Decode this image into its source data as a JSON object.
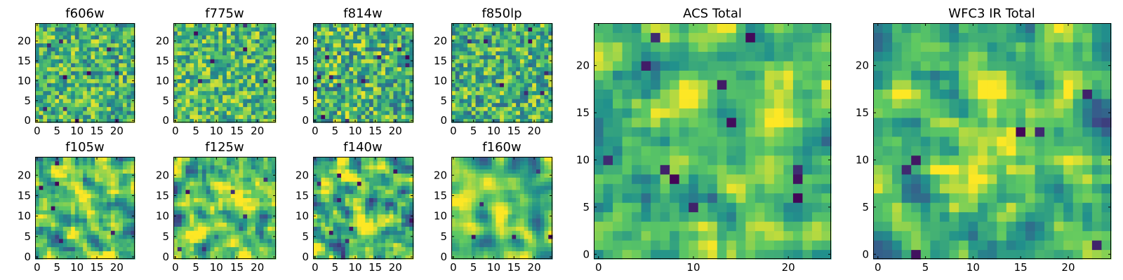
{
  "figure": {
    "colormap": "viridis",
    "colormap_stops": [
      "#440154",
      "#3b528b",
      "#21918c",
      "#5ec962",
      "#fde725"
    ]
  },
  "chart_data": [
    {
      "id": "f606w",
      "type": "heatmap",
      "title": "f606w",
      "grid_size": 25,
      "xlim": [
        0,
        24
      ],
      "ylim": [
        0,
        24
      ],
      "xticks": [
        0,
        5,
        10,
        15,
        20
      ],
      "yticks": [
        0,
        5,
        10,
        15,
        20
      ],
      "xtick_labels": [
        "0",
        "5",
        "10",
        "15",
        "20"
      ],
      "ytick_labels": [
        "0",
        "5",
        "10",
        "15",
        "20"
      ],
      "value_range": [
        0,
        1
      ],
      "seed": 606,
      "smoothness": 0,
      "mean": 0.66,
      "spread": 0.17,
      "low_outliers": 10,
      "blob": null
    },
    {
      "id": "f775w",
      "type": "heatmap",
      "title": "f775w",
      "grid_size": 25,
      "xlim": [
        0,
        24
      ],
      "ylim": [
        0,
        24
      ],
      "xticks": [
        0,
        5,
        10,
        15,
        20
      ],
      "yticks": [
        0,
        5,
        10,
        15,
        20
      ],
      "xtick_labels": [
        "0",
        "5",
        "10",
        "15",
        "20"
      ],
      "ytick_labels": [
        "0",
        "5",
        "10",
        "15",
        "20"
      ],
      "value_range": [
        0,
        1
      ],
      "seed": 775,
      "smoothness": 0,
      "mean": 0.68,
      "spread": 0.17,
      "low_outliers": 6,
      "blob": null
    },
    {
      "id": "f814w",
      "type": "heatmap",
      "title": "f814w",
      "grid_size": 25,
      "xlim": [
        0,
        24
      ],
      "ylim": [
        0,
        24
      ],
      "xticks": [
        0,
        5,
        10,
        15,
        20
      ],
      "yticks": [
        0,
        5,
        10,
        15,
        20
      ],
      "xtick_labels": [
        "0",
        "5",
        "10",
        "15",
        "20"
      ],
      "ytick_labels": [
        "0",
        "5",
        "10",
        "15",
        "20"
      ],
      "value_range": [
        0,
        1
      ],
      "seed": 814,
      "smoothness": 0,
      "mean": 0.64,
      "spread": 0.19,
      "low_outliers": 12,
      "blob": null
    },
    {
      "id": "f850lp",
      "type": "heatmap",
      "title": "f850lp",
      "grid_size": 25,
      "xlim": [
        0,
        24
      ],
      "ylim": [
        0,
        24
      ],
      "xticks": [
        0,
        5,
        10,
        15,
        20
      ],
      "yticks": [
        0,
        5,
        10,
        15,
        20
      ],
      "xtick_labels": [
        "0",
        "5",
        "10",
        "15",
        "20"
      ],
      "ytick_labels": [
        "0",
        "5",
        "10",
        "15",
        "20"
      ],
      "value_range": [
        0,
        1
      ],
      "seed": 850,
      "smoothness": 0,
      "mean": 0.64,
      "spread": 0.18,
      "low_outliers": 8,
      "blob": null
    },
    {
      "id": "f105w",
      "type": "heatmap",
      "title": "f105w",
      "grid_size": 25,
      "xlim": [
        0,
        24
      ],
      "ylim": [
        0,
        24
      ],
      "xticks": [
        0,
        5,
        10,
        15,
        20
      ],
      "yticks": [
        0,
        5,
        10,
        15,
        20
      ],
      "xtick_labels": [
        "0",
        "5",
        "10",
        "15",
        "20"
      ],
      "ytick_labels": [
        "0",
        "5",
        "10",
        "15",
        "20"
      ],
      "value_range": [
        0,
        1
      ],
      "seed": 105,
      "smoothness": 1,
      "mean": 0.7,
      "spread": 0.18,
      "low_outliers": 6,
      "blob": null
    },
    {
      "id": "f125w",
      "type": "heatmap",
      "title": "f125w",
      "grid_size": 25,
      "xlim": [
        0,
        24
      ],
      "ylim": [
        0,
        24
      ],
      "xticks": [
        0,
        5,
        10,
        15,
        20
      ],
      "yticks": [
        0,
        5,
        10,
        15,
        20
      ],
      "xtick_labels": [
        "0",
        "5",
        "10",
        "15",
        "20"
      ],
      "ytick_labels": [
        "0",
        "5",
        "10",
        "15",
        "20"
      ],
      "value_range": [
        0,
        1
      ],
      "seed": 125,
      "smoothness": 1,
      "mean": 0.7,
      "spread": 0.18,
      "low_outliers": 5,
      "blob": {
        "x": 10,
        "y": 12,
        "r": 4,
        "amp": 0.15
      }
    },
    {
      "id": "f140w",
      "type": "heatmap",
      "title": "f140w",
      "grid_size": 25,
      "xlim": [
        0,
        24
      ],
      "ylim": [
        0,
        24
      ],
      "xticks": [
        0,
        5,
        10,
        15,
        20
      ],
      "yticks": [
        0,
        5,
        10,
        15,
        20
      ],
      "xtick_labels": [
        "0",
        "5",
        "10",
        "15",
        "20"
      ],
      "ytick_labels": [
        "0",
        "5",
        "10",
        "15",
        "20"
      ],
      "value_range": [
        0,
        1
      ],
      "seed": 140,
      "smoothness": 1,
      "mean": 0.64,
      "spread": 0.2,
      "low_outliers": 8,
      "blob": {
        "x": 12,
        "y": 11,
        "r": 4,
        "amp": 0.2
      }
    },
    {
      "id": "f160w",
      "type": "heatmap",
      "title": "f160w",
      "grid_size": 25,
      "xlim": [
        0,
        24
      ],
      "ylim": [
        0,
        24
      ],
      "xticks": [
        0,
        5,
        10,
        15,
        20
      ],
      "yticks": [
        0,
        5,
        10,
        15,
        20
      ],
      "xtick_labels": [
        "0",
        "5",
        "10",
        "15",
        "20"
      ],
      "ytick_labels": [
        "0",
        "5",
        "10",
        "15",
        "20"
      ],
      "value_range": [
        0,
        1
      ],
      "seed": 160,
      "smoothness": 2,
      "mean": 0.66,
      "spread": 0.17,
      "low_outliers": 5,
      "blob": {
        "x": 13,
        "y": 11,
        "r": 4,
        "amp": 0.28
      }
    },
    {
      "id": "acs-total",
      "type": "heatmap",
      "title": "ACS Total",
      "grid_size": 25,
      "xlim": [
        0,
        24
      ],
      "ylim": [
        0,
        24
      ],
      "xticks": [
        0,
        10,
        20
      ],
      "yticks": [
        0,
        5,
        10,
        15,
        20
      ],
      "xtick_labels": [
        "0",
        "10",
        "20"
      ],
      "ytick_labels": [
        "0",
        "5",
        "10",
        "15",
        "20"
      ],
      "value_range": [
        0,
        1
      ],
      "seed": 4242,
      "smoothness": 1,
      "mean": 0.66,
      "spread": 0.13,
      "low_outliers": 12,
      "blob": {
        "x": 16,
        "y": 14,
        "r": 5,
        "amp": 0.12
      }
    },
    {
      "id": "wfc3-ir-total",
      "type": "heatmap",
      "title": "WFC3 IR Total",
      "grid_size": 25,
      "xlim": [
        0,
        24
      ],
      "ylim": [
        0,
        24
      ],
      "xticks": [
        0,
        5,
        10,
        15,
        20
      ],
      "yticks": [
        0,
        5,
        10,
        15,
        20
      ],
      "xtick_labels": [
        "0",
        "5",
        "10",
        "15",
        "20"
      ],
      "ytick_labels": [
        "0",
        "5",
        "10",
        "15",
        "20"
      ],
      "value_range": [
        0,
        1
      ],
      "seed": 9191,
      "smoothness": 1,
      "mean": 0.64,
      "spread": 0.14,
      "low_outliers": 7,
      "blob": {
        "x": 12,
        "y": 12,
        "r": 4,
        "amp": 0.25
      }
    }
  ]
}
